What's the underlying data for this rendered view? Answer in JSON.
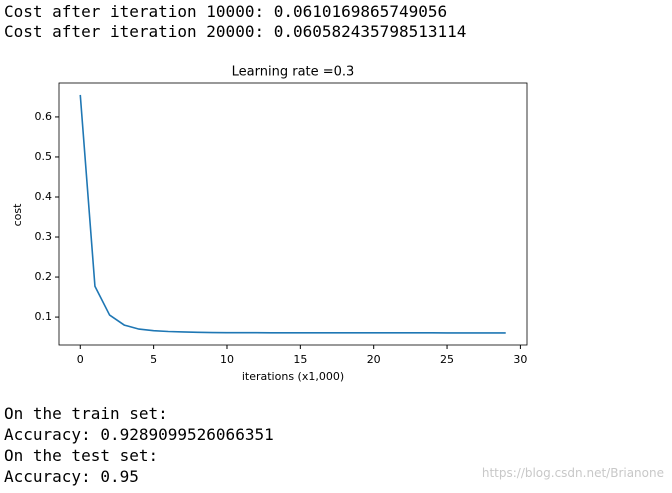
{
  "log_top": [
    "Cost after iteration 10000: 0.0610169865749056",
    "Cost after iteration 20000: 0.060582435798513114"
  ],
  "chart_data": {
    "type": "line",
    "title": "Learning rate =0.3",
    "x_label": "iterations (x1,000)",
    "y_label": "cost",
    "x": [
      0,
      1,
      2,
      3,
      4,
      5,
      6,
      7,
      8,
      9,
      10,
      11,
      12,
      13,
      14,
      15,
      16,
      17,
      18,
      19,
      20,
      21,
      22,
      23,
      24,
      25,
      26,
      27,
      28,
      29
    ],
    "series": [
      {
        "color": "#1f77b4",
        "values": [
          0.655,
          0.177,
          0.105,
          0.08,
          0.07,
          0.066,
          0.064,
          0.063,
          0.062,
          0.0614,
          0.061,
          0.0609,
          0.0609,
          0.0608,
          0.0608,
          0.0608,
          0.0607,
          0.0607,
          0.0607,
          0.0606,
          0.0606,
          0.0606,
          0.0606,
          0.0606,
          0.0606,
          0.0605,
          0.0605,
          0.0605,
          0.0605,
          0.0605
        ]
      }
    ],
    "xlim": [
      -1.45,
      30.45
    ],
    "ylim": [
      0.03025,
      0.68475
    ],
    "xticks": [
      0,
      5,
      10,
      15,
      20,
      25,
      30
    ],
    "yticks": [
      0.1,
      0.2,
      0.3,
      0.4,
      0.5,
      0.6
    ],
    "grid": false
  },
  "log_bottom": [
    "On the train set:",
    "Accuracy: 0.9289099526066351",
    "On the test set:",
    "Accuracy: 0.95"
  ],
  "watermark": "https://blog.csdn.net/Brianone"
}
